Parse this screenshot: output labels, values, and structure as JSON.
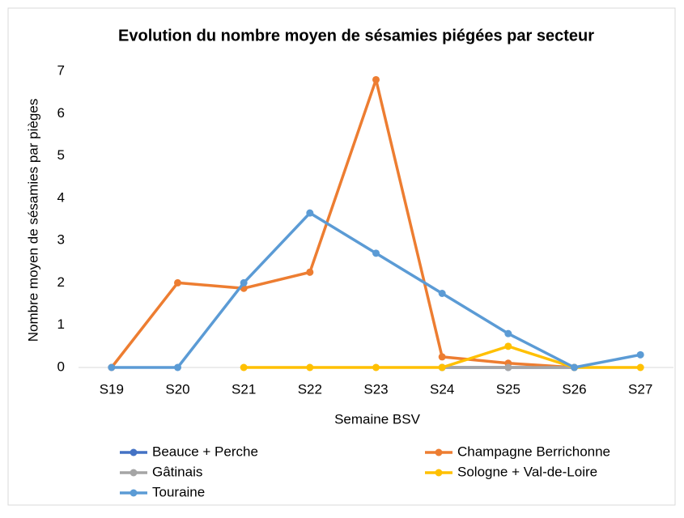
{
  "chart_data": {
    "type": "line",
    "title": "Evolution du nombre moyen de sésamies piégées par secteur",
    "x_label": "Semaine BSV",
    "y_label": "Nombre moyen de sésamies par pièges",
    "categories": [
      "S19",
      "S20",
      "S21",
      "S22",
      "S23",
      "S24",
      "S25",
      "S26",
      "S27"
    ],
    "series": [
      {
        "name": "Beauce + Perche",
        "color": "#4472c4",
        "values": [
          null,
          null,
          null,
          null,
          null,
          0,
          0,
          0,
          null
        ]
      },
      {
        "name": "Champagne Berrichonne",
        "color": "#ed7d31",
        "values": [
          0,
          2,
          1.87,
          2.25,
          6.8,
          0.25,
          0.1,
          0,
          null
        ]
      },
      {
        "name": "Gâtinais",
        "color": "#a5a5a5",
        "values": [
          null,
          null,
          null,
          null,
          null,
          0,
          0,
          0,
          null
        ]
      },
      {
        "name": "Sologne + Val-de-Loire",
        "color": "#ffc000",
        "values": [
          null,
          null,
          0,
          0,
          0,
          0,
          0.5,
          0,
          0
        ]
      },
      {
        "name": "Touraine",
        "color": "#5b9bd5",
        "values": [
          0,
          0,
          2,
          3.65,
          2.7,
          1.75,
          0.8,
          0,
          0.3
        ]
      }
    ],
    "ylim": [
      0,
      7
    ],
    "yticks": [
      0,
      1,
      2,
      3,
      4,
      5,
      6,
      7
    ],
    "legend": "bottom"
  }
}
